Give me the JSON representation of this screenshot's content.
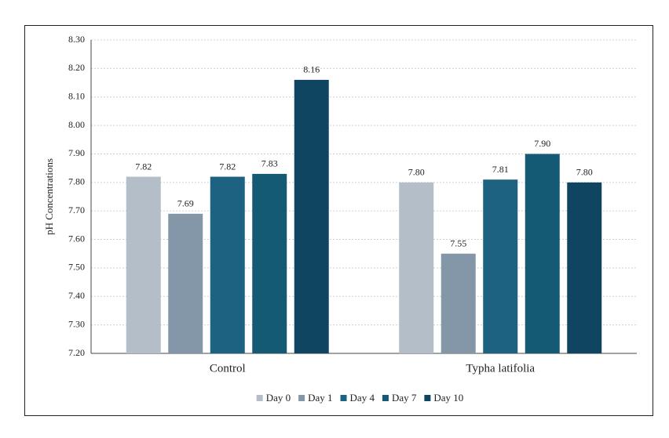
{
  "chart_data": {
    "type": "bar",
    "y_label": "pH Concentrations",
    "categories": [
      "Control",
      "Typha latifolia"
    ],
    "series": [
      {
        "name": "Day 0",
        "color": "#b4bec8",
        "values": [
          7.82,
          7.8
        ],
        "value_labels": [
          "7.82",
          "7.80"
        ]
      },
      {
        "name": "Day 1",
        "color": "#8497a9",
        "values": [
          7.69,
          7.55
        ],
        "value_labels": [
          "7.69",
          "7.55"
        ]
      },
      {
        "name": "Day 4",
        "color": "#1d6281",
        "values": [
          7.82,
          7.81
        ],
        "value_labels": [
          "7.82",
          "7.81"
        ]
      },
      {
        "name": "Day 7",
        "color": "#155a74",
        "values": [
          7.83,
          7.9
        ],
        "value_labels": [
          "7.83",
          "7.90"
        ]
      },
      {
        "name": "Day 10",
        "color": "#0f4560",
        "values": [
          8.16,
          7.8
        ],
        "value_labels": [
          "8.16",
          "7.80"
        ]
      }
    ],
    "ylim": [
      7.2,
      8.3
    ],
    "yticks": [
      {
        "value": 7.2,
        "label": "7.20"
      },
      {
        "value": 7.3,
        "label": "7.30"
      },
      {
        "value": 7.4,
        "label": "7.40"
      },
      {
        "value": 7.5,
        "label": "7.50"
      },
      {
        "value": 7.6,
        "label": "7.60"
      },
      {
        "value": 7.7,
        "label": "7.70"
      },
      {
        "value": 7.8,
        "label": "7.80"
      },
      {
        "value": 7.9,
        "label": "7.90"
      },
      {
        "value": 8.0,
        "label": "8.00"
      },
      {
        "value": 8.1,
        "label": "8.10"
      },
      {
        "value": 8.2,
        "label": "8.20"
      },
      {
        "value": 8.3,
        "label": "8.30"
      }
    ],
    "grid": true,
    "legend": "bottom"
  }
}
